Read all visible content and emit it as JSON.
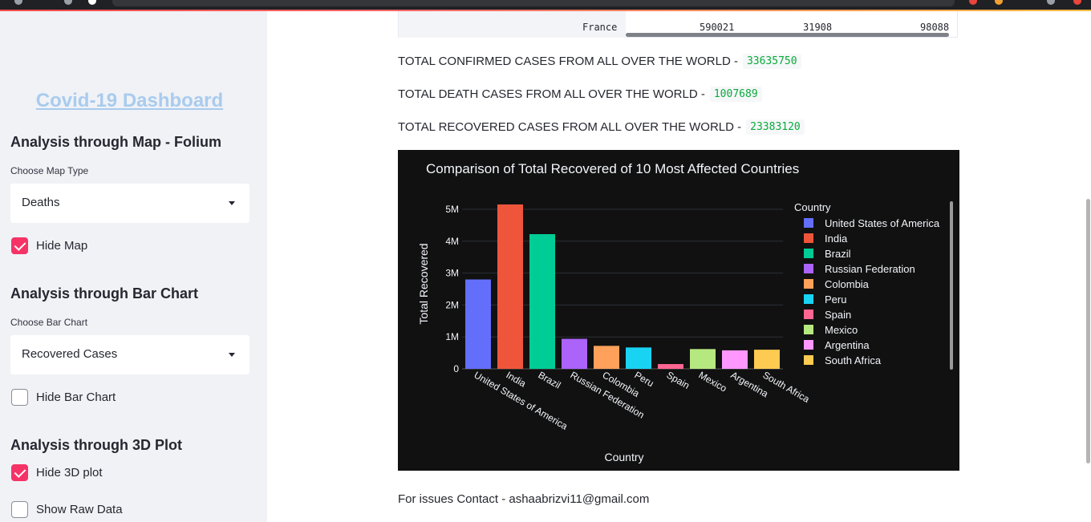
{
  "sidebar": {
    "title": "Covid-19 Dashboard",
    "map_heading": "Analysis through Map - Folium",
    "map_type_label": "Choose Map Type",
    "map_type_value": "Deaths",
    "hide_map_label": "Hide Map",
    "hide_map_checked": true,
    "bar_heading": "Analysis through Bar Chart",
    "bar_type_label": "Choose Bar Chart",
    "bar_type_value": "Recovered Cases",
    "hide_bar_label": "Hide Bar Chart",
    "hide_bar_checked": false,
    "plot3d_heading": "Analysis through 3D Plot",
    "hide_3d_label": "Hide 3D plot",
    "hide_3d_checked": true,
    "raw_data_label": "Show Raw Data",
    "raw_data_checked": false
  },
  "table_row": {
    "country": "France",
    "confirmed": "590021",
    "deaths": "31908",
    "recovered": "98088"
  },
  "stats": {
    "confirmed_label": "TOTAL CONFIRMED CASES FROM ALL OVER THE WORLD -",
    "confirmed_value": "33635750",
    "death_label": "TOTAL DEATH CASES FROM ALL OVER THE WORLD -",
    "death_value": "1007689",
    "recovered_label": "TOTAL RECOVERED CASES FROM ALL OVER THE WORLD -",
    "recovered_value": "23383120"
  },
  "chart_data": {
    "type": "bar",
    "title": "Comparison of Total Recovered of 10 Most Affected Countries",
    "xlabel": "Country",
    "ylabel": "Total Recovered",
    "ylim": [
      0,
      5300000
    ],
    "yticks": [
      {
        "value": 0,
        "label": "0"
      },
      {
        "value": 1000000,
        "label": "1M"
      },
      {
        "value": 2000000,
        "label": "2M"
      },
      {
        "value": 3000000,
        "label": "3M"
      },
      {
        "value": 4000000,
        "label": "4M"
      },
      {
        "value": 5000000,
        "label": "5M"
      }
    ],
    "legend_title": "Country",
    "legend_position": "right",
    "categories": [
      "United States of America",
      "India",
      "Brazil",
      "Russian Federation",
      "Colombia",
      "Peru",
      "Spain",
      "Mexico",
      "Argentina",
      "South Africa"
    ],
    "values": [
      2800000,
      5150000,
      4220000,
      940000,
      720000,
      670000,
      150000,
      620000,
      580000,
      600000
    ],
    "colors": [
      "#636efa",
      "#ef553b",
      "#00cc96",
      "#ab63fa",
      "#ffa15a",
      "#19d3f3",
      "#ff6692",
      "#b6e880",
      "#ff97ff",
      "#fecb52"
    ]
  },
  "contact_text": "For issues Contact - ashaabrizvi11@gmail.com"
}
